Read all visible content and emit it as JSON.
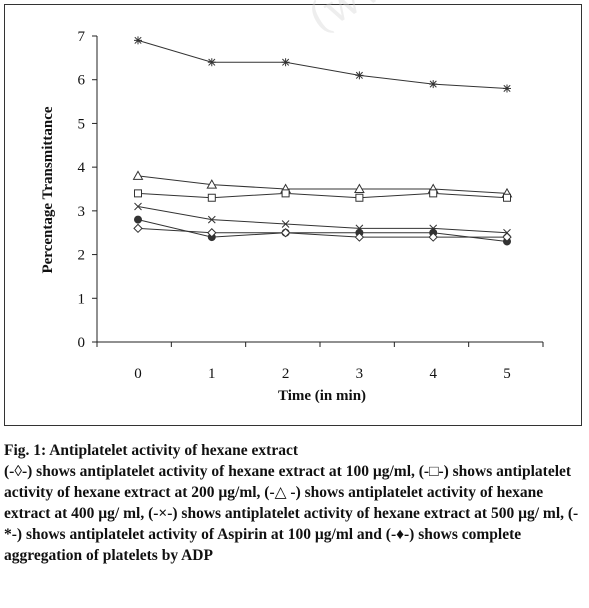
{
  "chart_data": {
    "type": "line",
    "x": [
      0,
      1,
      2,
      3,
      4,
      5
    ],
    "xlim": [
      0,
      5
    ],
    "ylim": [
      0,
      7
    ],
    "xticks": [
      "0",
      "1",
      "2",
      "3",
      "4",
      "5"
    ],
    "yticks": [
      "0",
      "1",
      "2",
      "3",
      "4",
      "5",
      "6",
      "7"
    ],
    "xlabel": "Time (in min)",
    "ylabel": "Percentage Transmittance",
    "grid": false,
    "series": [
      {
        "marker": "star",
        "values": [
          6.9,
          6.4,
          6.4,
          6.1,
          5.9,
          5.8
        ]
      },
      {
        "marker": "triangle-open",
        "values": [
          3.8,
          3.6,
          3.5,
          3.5,
          3.5,
          3.4
        ]
      },
      {
        "marker": "square-open",
        "values": [
          3.4,
          3.3,
          3.4,
          3.3,
          3.4,
          3.3
        ]
      },
      {
        "marker": "x",
        "values": [
          3.1,
          2.8,
          2.7,
          2.6,
          2.6,
          2.5
        ]
      },
      {
        "marker": "circle-filled",
        "values": [
          2.8,
          2.4,
          2.5,
          2.5,
          2.5,
          2.3
        ]
      },
      {
        "marker": "diamond-open",
        "values": [
          2.6,
          2.5,
          2.5,
          2.4,
          2.4,
          2.4
        ]
      }
    ],
    "line_color": "#333333"
  },
  "caption": {
    "title": "Fig. 1: Antiplatelet activity of hexane extract",
    "body": "(-◊-) shows antiplatelet activity of hexane extract at 100 µg/ml, (-□-) shows antiplatelet activity of hexane extract at 200 µg/ml, (-△ -) shows antiplatelet activity of hexane extract at 400 µg/ ml, (-×-) shows antiplatelet activity of hexane extract at 500 µg/ ml, (-*-) shows antiplatelet activity of Aspirin at 100 µg/ml and (-♦-) shows complete aggregation of platelets by ADP"
  },
  "watermark": "(ww"
}
